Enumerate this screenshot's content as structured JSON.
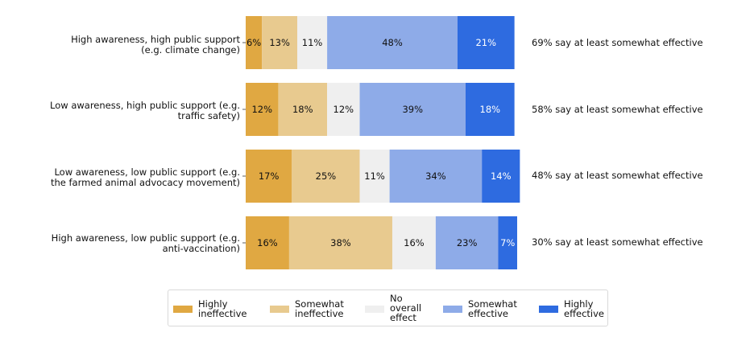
{
  "chart_data": {
    "type": "bar",
    "orientation": "horizontal",
    "stacked": true,
    "categories": [
      [
        "High awareness, high public support",
        "(e.g. climate change)"
      ],
      [
        "Low awareness, high public support (e.g.",
        "traffic safety)"
      ],
      [
        "Low awareness, low public support (e.g.",
        "the farmed animal advocacy movement)"
      ],
      [
        "High awareness, low public support (e.g.",
        "anti-vaccination)"
      ]
    ],
    "series": [
      {
        "name": "Highly ineffective",
        "legend_lines": [
          "Highly",
          "ineffective"
        ],
        "color": "#e0a842",
        "label_color": "#111111",
        "values": [
          6,
          12,
          17,
          16
        ],
        "labels": [
          "6%",
          "12%",
          "17%",
          "16%"
        ]
      },
      {
        "name": "Somewhat ineffective",
        "legend_lines": [
          "Somewhat",
          "ineffective"
        ],
        "color": "#e8ca8f",
        "label_color": "#111111",
        "values": [
          13,
          18,
          25,
          38
        ],
        "labels": [
          "13%",
          "18%",
          "25%",
          "38%"
        ]
      },
      {
        "name": "No overall effect",
        "legend_lines": [
          "No",
          "overall",
          "effect"
        ],
        "color": "#efefef",
        "label_color": "#111111",
        "values": [
          11,
          12,
          11,
          16
        ],
        "labels": [
          "11%",
          "12%",
          "11%",
          "16%"
        ]
      },
      {
        "name": "Somewhat effective",
        "legend_lines": [
          "Somewhat",
          "effective"
        ],
        "color": "#8eabe8",
        "label_color": "#111111",
        "values": [
          48,
          39,
          34,
          23
        ],
        "labels": [
          "48%",
          "39%",
          "34%",
          "23%"
        ]
      },
      {
        "name": "Highly effective",
        "legend_lines": [
          "Highly",
          "effective"
        ],
        "color": "#2e6be0",
        "label_color": "#ffffff",
        "values": [
          21,
          18,
          14,
          7
        ],
        "labels": [
          "21%",
          "18%",
          "14%",
          "7%"
        ]
      }
    ],
    "annotations": [
      "69% say at least somewhat effective",
      "58% say at least somewhat effective",
      "48% say at least somewhat effective",
      "30% say at least somewhat effective"
    ],
    "xlim": [
      0,
      100
    ],
    "legend_position": "bottom-center",
    "grid": false
  }
}
